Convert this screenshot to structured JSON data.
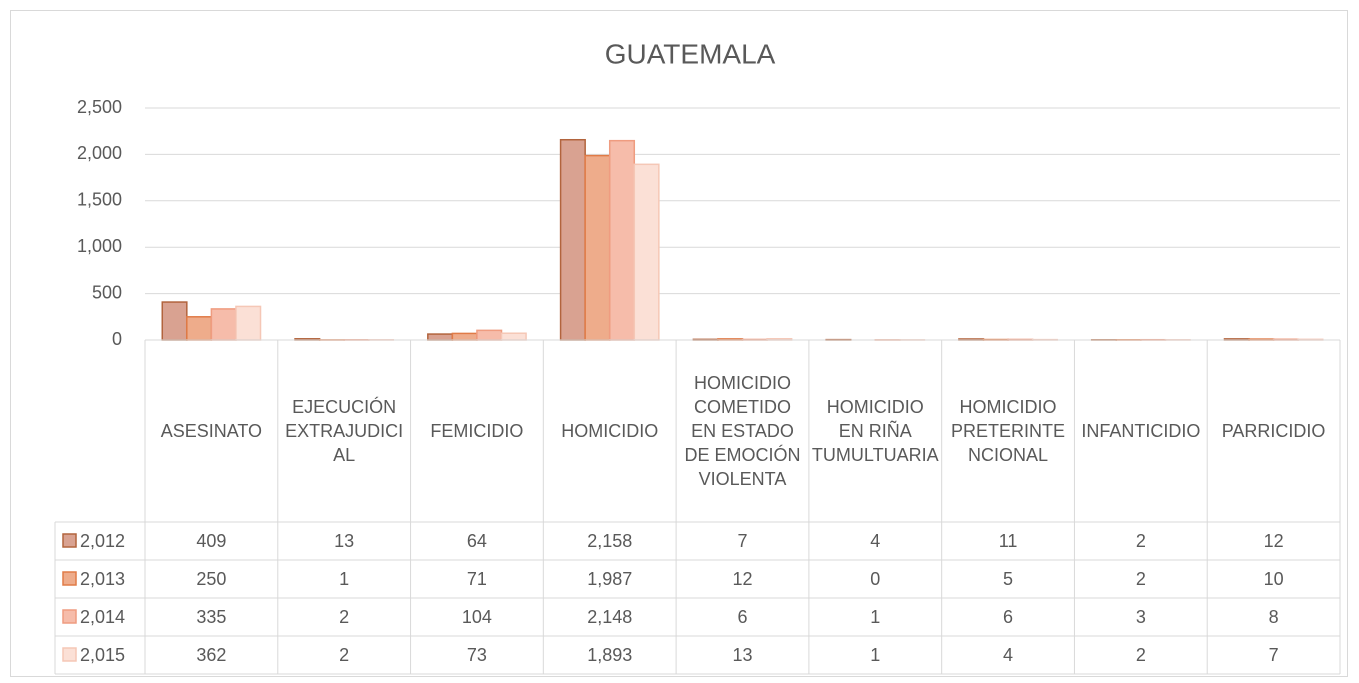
{
  "chart_data": {
    "type": "bar",
    "title": "GUATEMALA",
    "categories": [
      "ASESINATO",
      "EJECUCIÓN EXTRAJUDICIAL",
      "FEMICIDIO",
      "HOMICIDIO",
      "HOMICIDIO COMETIDO EN ESTADO DE EMOCIÓN VIOLENTA",
      "HOMICIDIO EN RIÑA TUMULTUARIA",
      "HOMICIDIO PRETERINTENCIONAL",
      "INFANTICIDIO",
      "PARRICIDIO"
    ],
    "series": [
      {
        "name": "2,012",
        "color": "#d9a291",
        "edge_color": "#b2643d",
        "values": [
          409,
          13,
          64,
          2158,
          7,
          4,
          11,
          2,
          12
        ],
        "value_labels": [
          "409",
          "13",
          "64",
          "2,158",
          "7",
          "4",
          "11",
          "2",
          "12"
        ]
      },
      {
        "name": "2,013",
        "color": "#eeac8b",
        "edge_color": "#e07b47",
        "values": [
          250,
          1,
          71,
          1987,
          12,
          0,
          5,
          2,
          10
        ],
        "value_labels": [
          "250",
          "1",
          "71",
          "1,987",
          "12",
          "0",
          "5",
          "2",
          "10"
        ]
      },
      {
        "name": "2,014",
        "color": "#f6bcaa",
        "edge_color": "#ef9c80",
        "values": [
          335,
          2,
          104,
          2148,
          6,
          1,
          6,
          3,
          8
        ],
        "value_labels": [
          "335",
          "2",
          "104",
          "2,148",
          "6",
          "1",
          "6",
          "3",
          "8"
        ]
      },
      {
        "name": "2,015",
        "color": "#fbe0d6",
        "edge_color": "#f5c7b6",
        "values": [
          362,
          2,
          73,
          1893,
          13,
          1,
          4,
          2,
          7
        ],
        "value_labels": [
          "362",
          "2",
          "73",
          "1,893",
          "13",
          "1",
          "4",
          "2",
          "7"
        ]
      }
    ],
    "ylim": [
      0,
      2500
    ],
    "yticks": [
      0,
      500,
      {
        "value": 1000,
        "label": "1,000"
      },
      {
        "value": 1500,
        "label": "1,500"
      },
      {
        "value": 2000,
        "label": "2,000"
      },
      {
        "value": 2500,
        "label": "2,500"
      }
    ],
    "grid": true
  }
}
